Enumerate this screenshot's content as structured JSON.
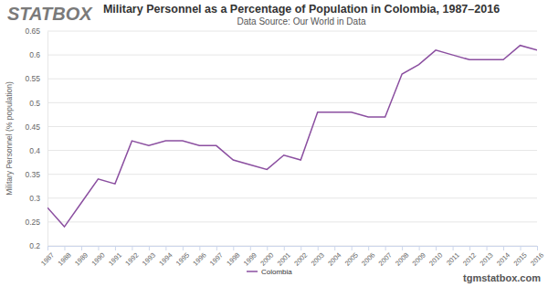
{
  "chart_data": {
    "type": "line",
    "title": "Military Personnel as a Percentage of Population in Colombia, 1987–2016",
    "subtitle": "Data Source: Our World in Data",
    "y_label": "Military Personnel (% population)",
    "annotations": [
      "STATBOX",
      "tgmstatbox.com"
    ],
    "x": [
      1987,
      1988,
      1989,
      1990,
      1991,
      1992,
      1993,
      1994,
      1995,
      1996,
      1997,
      1998,
      1999,
      2000,
      2001,
      2002,
      2003,
      2004,
      2005,
      2006,
      2007,
      2008,
      2009,
      2010,
      2011,
      2012,
      2013,
      2014,
      2015,
      2016
    ],
    "series": [
      {
        "name": "Colombia",
        "color": "#8b4fa0",
        "values": [
          0.28,
          0.24,
          0.29,
          0.34,
          0.33,
          0.42,
          0.41,
          0.42,
          0.42,
          0.41,
          0.41,
          0.38,
          0.37,
          0.36,
          0.39,
          0.38,
          0.48,
          0.48,
          0.48,
          0.47,
          0.47,
          0.56,
          0.58,
          0.61,
          0.6,
          0.59,
          0.59,
          0.59,
          0.62,
          0.61
        ]
      }
    ],
    "xlim": [
      1987,
      2016
    ],
    "xticks": [
      1987,
      1988,
      1989,
      1990,
      1991,
      1992,
      1993,
      1994,
      1995,
      1996,
      1997,
      1998,
      1999,
      2000,
      2001,
      2002,
      2003,
      2004,
      2005,
      2006,
      2007,
      2008,
      2009,
      2010,
      2011,
      2012,
      2013,
      2014,
      2015,
      2016
    ],
    "ylim": [
      0.2,
      0.65
    ],
    "yticks": [
      0.2,
      0.25,
      0.3,
      0.35,
      0.4,
      0.45,
      0.5,
      0.55,
      0.6,
      0.65
    ],
    "grid": true,
    "legend": "bottom"
  }
}
